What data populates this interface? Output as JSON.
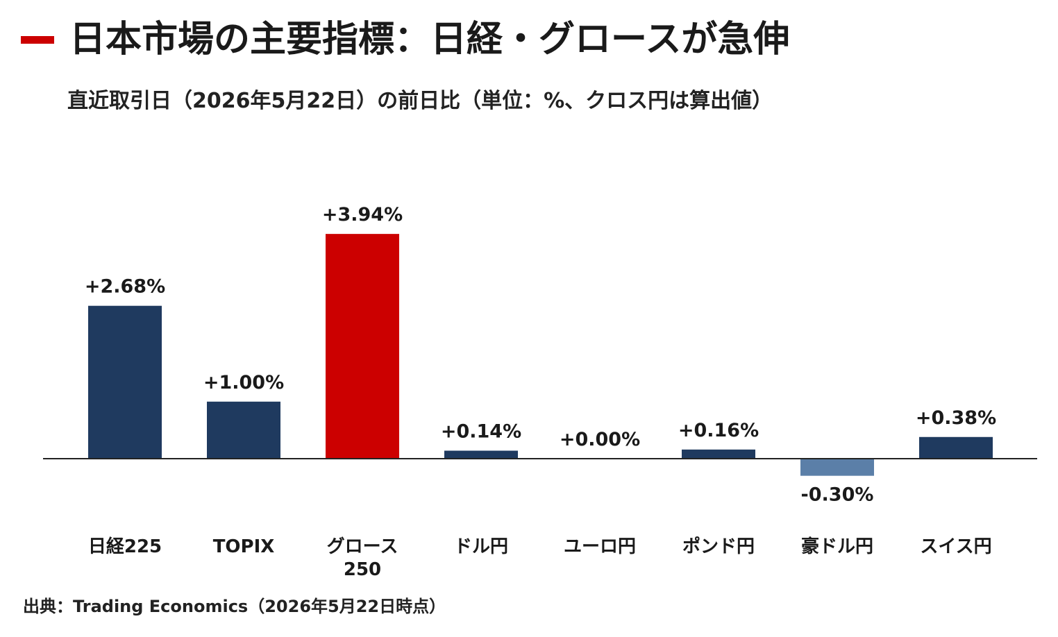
{
  "header": {
    "title": "日本市場の主要指標：日経・グロースが急伸",
    "subtitle": "直近取引日（2026年5月22日）の前日比（単位：%、クロス円は算出値）"
  },
  "footer": {
    "source": "出典：Trading Economics（2026年5月22日時点）"
  },
  "colors": {
    "accent": "#cc0000",
    "positive": "#1f3a5f",
    "negative": "#5b7fa8",
    "highlight": "#cc0000"
  },
  "chart_data": {
    "type": "bar",
    "categories": [
      [
        "日経225"
      ],
      [
        "TOPIX"
      ],
      [
        "グロース",
        "250"
      ],
      [
        "ドル円"
      ],
      [
        "ユーロ円"
      ],
      [
        "ポンド円"
      ],
      [
        "豪ドル円"
      ],
      [
        "スイス円"
      ]
    ],
    "values": [
      2.68,
      1.0,
      3.94,
      0.14,
      0.0,
      0.16,
      -0.3,
      0.38
    ],
    "value_labels": [
      "+2.68%",
      "+1.00%",
      "+3.94%",
      "+0.14%",
      "+0.00%",
      "+0.16%",
      "-0.30%",
      "+0.38%"
    ],
    "highlight_index": 2,
    "grid": false,
    "legend": "none"
  }
}
